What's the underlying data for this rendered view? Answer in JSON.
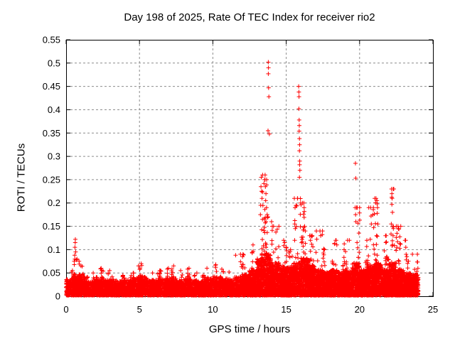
{
  "chart_data": {
    "type": "scatter",
    "title": "Day 198 of 2025, Rate Of TEC Index for receiver rio2",
    "xlabel": "GPS time / hours",
    "ylabel": "ROTI / TECUs",
    "xlim": [
      0,
      25
    ],
    "ylim": [
      0,
      0.55
    ],
    "xticks": [
      [
        "0",
        0
      ],
      [
        "5",
        5
      ],
      [
        "10",
        10
      ],
      [
        "15",
        15
      ],
      [
        "20",
        20
      ],
      [
        "25",
        25
      ]
    ],
    "yticks": [
      [
        "0",
        0
      ],
      [
        "0.05",
        0.05
      ],
      [
        "0.1",
        0.1
      ],
      [
        "0.15",
        0.15
      ],
      [
        "0.2",
        0.2
      ],
      [
        "0.25",
        0.25
      ],
      [
        "0.3",
        0.3
      ],
      [
        "0.35",
        0.35
      ],
      [
        "0.4",
        0.4
      ],
      [
        "0.45",
        0.45
      ],
      [
        "0.5",
        0.5
      ],
      [
        "0.55",
        0.55
      ]
    ],
    "grid": true,
    "legend": "none",
    "marker": "plus",
    "marker_color": "#ff0000",
    "grid_color": "#8c8c8c",
    "axis_color": "#000000",
    "background": "#ffffff",
    "data_start": 0.0,
    "data_end": 24.05,
    "bin_hours": 0.5,
    "envelope_bins": [
      [
        0.035,
        0.055
      ],
      [
        0.045,
        0.08
      ],
      [
        0.04,
        0.065
      ],
      [
        0.03,
        0.05
      ],
      [
        0.04,
        0.06
      ],
      [
        0.032,
        0.05
      ],
      [
        0.035,
        0.055
      ],
      [
        0.03,
        0.045
      ],
      [
        0.033,
        0.05
      ],
      [
        0.038,
        0.065
      ],
      [
        0.04,
        0.07
      ],
      [
        0.032,
        0.05
      ],
      [
        0.034,
        0.055
      ],
      [
        0.036,
        0.06
      ],
      [
        0.038,
        0.065
      ],
      [
        0.032,
        0.055
      ],
      [
        0.036,
        0.06
      ],
      [
        0.032,
        0.05
      ],
      [
        0.03,
        0.045
      ],
      [
        0.036,
        0.06
      ],
      [
        0.04,
        0.068
      ],
      [
        0.036,
        0.058
      ],
      [
        0.032,
        0.052
      ],
      [
        0.04,
        0.09
      ],
      [
        0.045,
        0.09
      ],
      [
        0.055,
        0.11
      ],
      [
        0.08,
        0.26
      ],
      [
        0.09,
        0.25
      ],
      [
        0.07,
        0.15
      ],
      [
        0.065,
        0.12
      ],
      [
        0.06,
        0.1
      ],
      [
        0.07,
        0.21
      ],
      [
        0.08,
        0.2
      ],
      [
        0.065,
        0.13
      ],
      [
        0.055,
        0.14
      ],
      [
        0.05,
        0.1
      ],
      [
        0.055,
        0.12
      ],
      [
        0.05,
        0.1
      ],
      [
        0.055,
        0.12
      ],
      [
        0.07,
        0.19
      ],
      [
        0.055,
        0.12
      ],
      [
        0.065,
        0.19
      ],
      [
        0.07,
        0.21
      ],
      [
        0.055,
        0.13
      ],
      [
        0.07,
        0.23
      ],
      [
        0.055,
        0.15
      ],
      [
        0.05,
        0.12
      ],
      [
        0.045,
        0.09
      ]
    ],
    "outliers": [
      [
        0.58,
        0.088
      ],
      [
        0.6,
        0.105
      ],
      [
        0.62,
        0.115
      ],
      [
        0.63,
        0.122
      ],
      [
        0.65,
        0.095
      ],
      [
        0.88,
        0.075
      ],
      [
        0.9,
        0.069
      ],
      [
        5.15,
        0.066
      ],
      [
        11.55,
        0.088
      ],
      [
        13.24,
        0.175
      ],
      [
        13.26,
        0.195
      ],
      [
        13.28,
        0.235
      ],
      [
        13.3,
        0.255
      ],
      [
        13.32,
        0.225
      ],
      [
        13.35,
        0.21
      ],
      [
        13.38,
        0.165
      ],
      [
        13.55,
        0.25
      ],
      [
        13.58,
        0.235
      ],
      [
        13.6,
        0.205
      ],
      [
        13.62,
        0.22
      ],
      [
        13.66,
        0.19
      ],
      [
        13.7,
        0.175
      ],
      [
        13.76,
        0.355
      ],
      [
        13.78,
        0.502
      ],
      [
        13.78,
        0.477
      ],
      [
        13.79,
        0.49
      ],
      [
        13.8,
        0.447
      ],
      [
        13.82,
        0.428
      ],
      [
        13.85,
        0.348
      ],
      [
        14.0,
        0.16
      ],
      [
        14.05,
        0.15
      ],
      [
        14.9,
        0.115
      ],
      [
        15.0,
        0.105
      ],
      [
        15.55,
        0.21
      ],
      [
        15.58,
        0.155
      ],
      [
        15.6,
        0.19
      ],
      [
        15.62,
        0.145
      ],
      [
        15.85,
        0.45
      ],
      [
        15.86,
        0.438
      ],
      [
        15.86,
        0.402
      ],
      [
        15.87,
        0.428
      ],
      [
        15.88,
        0.378
      ],
      [
        15.88,
        0.354
      ],
      [
        15.89,
        0.366
      ],
      [
        15.9,
        0.338
      ],
      [
        15.9,
        0.312
      ],
      [
        15.9,
        0.255
      ],
      [
        15.91,
        0.325
      ],
      [
        15.91,
        0.282
      ],
      [
        15.92,
        0.29
      ],
      [
        15.93,
        0.27
      ],
      [
        16.18,
        0.176
      ],
      [
        16.2,
        0.2
      ],
      [
        16.22,
        0.19
      ],
      [
        16.25,
        0.15
      ],
      [
        16.3,
        0.14
      ],
      [
        16.6,
        0.13
      ],
      [
        16.65,
        0.12
      ],
      [
        17.3,
        0.14
      ],
      [
        17.35,
        0.13
      ],
      [
        18.4,
        0.12
      ],
      [
        18.45,
        0.11
      ],
      [
        19.3,
        0.12
      ],
      [
        19.7,
        0.19
      ],
      [
        19.72,
        0.285
      ],
      [
        19.73,
        0.175
      ],
      [
        19.74,
        0.253
      ],
      [
        19.75,
        0.16
      ],
      [
        20.75,
        0.19
      ],
      [
        20.78,
        0.172
      ],
      [
        20.8,
        0.155
      ],
      [
        21.16,
        0.13
      ],
      [
        21.18,
        0.205
      ],
      [
        21.2,
        0.198
      ],
      [
        21.2,
        0.178
      ],
      [
        21.22,
        0.19
      ],
      [
        21.24,
        0.155
      ],
      [
        22.16,
        0.155
      ],
      [
        22.18,
        0.23
      ],
      [
        22.2,
        0.22
      ],
      [
        22.2,
        0.197
      ],
      [
        22.22,
        0.21
      ],
      [
        22.24,
        0.18
      ],
      [
        22.28,
        0.13
      ],
      [
        22.3,
        0.145
      ],
      [
        22.5,
        0.15
      ],
      [
        22.55,
        0.135
      ],
      [
        23.1,
        0.12
      ],
      [
        23.15,
        0.105
      ],
      [
        23.6,
        0.09
      ]
    ],
    "seed": 198,
    "dense_points_per_bin": 150,
    "dense_points_per_bin_active": 260,
    "active_base_threshold": 0.045,
    "cluster_points_per_bin": 14
  }
}
